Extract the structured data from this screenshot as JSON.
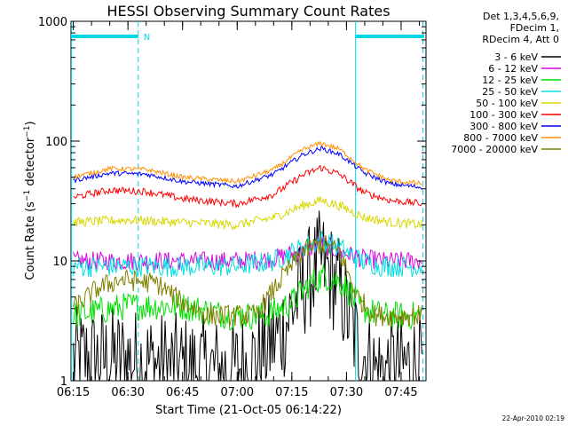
{
  "chart_data": {
    "type": "line",
    "title": "HESSI Observing Summary Count Rates",
    "xlabel": "Start Time (21-Oct-05 06:14:22)",
    "ylabel": "Count Rate (s⁻¹ detector⁻¹)",
    "ylabel_parts": {
      "pre": "Count Rate (s",
      "sup1": "−1",
      "mid": " detector",
      "sup2": "−1",
      "post": ")"
    },
    "yscale": "log",
    "ylim": [
      1,
      1000
    ],
    "xlim": [
      "06:14:22",
      "07:51:50"
    ],
    "x_tick_labels": [
      "06:15",
      "06:30",
      "06:45",
      "07:00",
      "07:15",
      "07:30",
      "07:45"
    ],
    "y_tick_labels": [
      "1",
      "10",
      "100",
      "1000"
    ],
    "legend_header": [
      "Det 1,3,4,5,6,9,",
      "FDecim 1,",
      "RDecim 4, Att 0"
    ],
    "legend_position": "right",
    "annotations": {
      "eclipse_marker_label": "N",
      "night_intervals": [
        [
          "06:14:22",
          "06:32:50"
        ],
        [
          "07:32:30",
          "07:51:20"
        ]
      ],
      "saa_lines_solid": [
        "06:14:30",
        "07:32:30"
      ],
      "saa_lines_dashed": [
        "06:32:50",
        "07:51:00"
      ]
    },
    "series": [
      {
        "name": "3 - 6 keV",
        "color": "#000000",
        "x": [
          "06:15",
          "06:30",
          "06:45",
          "06:58",
          "07:05",
          "07:12",
          "07:18",
          "07:23",
          "07:28",
          "07:33",
          "07:38",
          "07:45",
          "07:51"
        ],
        "values": [
          1.5,
          1.5,
          1.3,
          1.2,
          1.5,
          2.5,
          6,
          10,
          6,
          2,
          1.2,
          1.3,
          1.4
        ]
      },
      {
        "name": "6 - 12 keV",
        "color": "#e000e0",
        "x": [
          "06:15",
          "06:30",
          "06:45",
          "07:00",
          "07:10",
          "07:18",
          "07:23",
          "07:28",
          "07:34",
          "07:40",
          "07:51"
        ],
        "values": [
          10,
          10,
          10,
          10,
          10.5,
          12,
          14,
          12,
          10.5,
          10,
          10
        ]
      },
      {
        "name": "12 - 25 keV",
        "color": "#00e000",
        "x": [
          "06:15",
          "06:30",
          "06:45",
          "06:58",
          "07:08",
          "07:15",
          "07:20",
          "07:24",
          "07:29",
          "07:34",
          "07:40",
          "07:51"
        ],
        "values": [
          3.5,
          4.2,
          4.2,
          3.5,
          3.5,
          4.5,
          6.5,
          7.5,
          6.5,
          4,
          3.5,
          3.5
        ]
      },
      {
        "name": "25 - 50 keV",
        "color": "#00e0e0",
        "x": [
          "06:15",
          "06:30",
          "06:45",
          "07:00",
          "07:10",
          "07:18",
          "07:23",
          "07:28",
          "07:34",
          "07:40",
          "07:51"
        ],
        "values": [
          9,
          9,
          9,
          9,
          10,
          13,
          15,
          13,
          10,
          9,
          9
        ]
      },
      {
        "name": "50 - 100 keV",
        "color": "#d8d800",
        "x": [
          "06:15",
          "06:30",
          "06:45",
          "07:00",
          "07:10",
          "07:18",
          "07:23",
          "07:28",
          "07:35",
          "07:42",
          "07:51"
        ],
        "values": [
          21,
          22,
          21,
          20,
          23,
          29,
          32,
          29,
          23,
          21,
          20
        ]
      },
      {
        "name": "100 - 300 keV",
        "color": "#ff0000",
        "x": [
          "06:15",
          "06:25",
          "06:35",
          "06:45",
          "07:00",
          "07:10",
          "07:18",
          "07:23",
          "07:28",
          "07:35",
          "07:42",
          "07:51"
        ],
        "values": [
          34,
          39,
          38,
          33,
          30,
          36,
          52,
          60,
          53,
          37,
          32,
          30
        ]
      },
      {
        "name": "300 - 800 keV",
        "color": "#0000ff",
        "x": [
          "06:15",
          "06:25",
          "06:35",
          "06:45",
          "07:00",
          "07:10",
          "07:18",
          "07:23",
          "07:28",
          "07:35",
          "07:42",
          "07:51"
        ],
        "values": [
          47,
          54,
          53,
          46,
          42,
          53,
          77,
          87,
          78,
          54,
          44,
          41
        ]
      },
      {
        "name": "800 - 7000 keV",
        "color": "#ff9000",
        "x": [
          "06:15",
          "06:25",
          "06:35",
          "06:45",
          "07:00",
          "07:10",
          "07:18",
          "07:23",
          "07:28",
          "07:35",
          "07:42",
          "07:51"
        ],
        "values": [
          50,
          59,
          58,
          50,
          46,
          58,
          85,
          96,
          86,
          58,
          47,
          44
        ]
      },
      {
        "name": "7000 - 20000 keV",
        "color": "#808000",
        "x": [
          "06:15",
          "06:22",
          "06:28",
          "06:38",
          "06:45",
          "06:52",
          "07:05",
          "07:12",
          "07:18",
          "07:23",
          "07:28",
          "07:33",
          "07:38",
          "07:45",
          "07:51"
        ],
        "values": [
          4,
          6,
          7,
          6.5,
          4.5,
          3.5,
          3.5,
          7,
          12,
          14,
          12,
          5,
          3.5,
          3.5,
          3.5
        ]
      }
    ]
  },
  "footer": {
    "timestamp": "22-Apr-2010 02:19"
  }
}
